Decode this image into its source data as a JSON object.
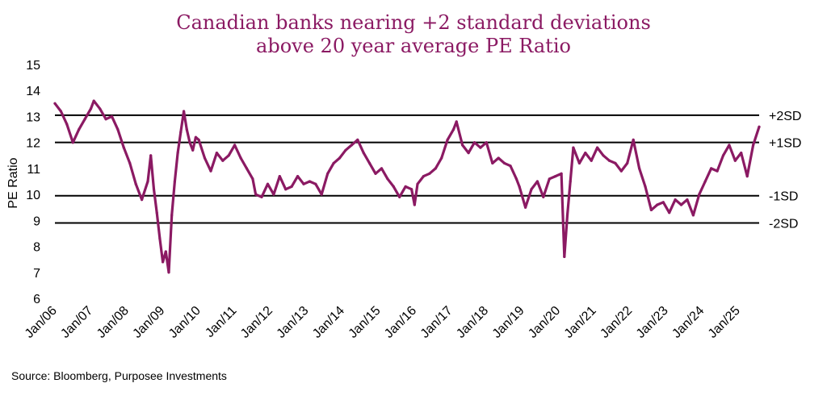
{
  "chart_data": {
    "type": "line",
    "title_lines": [
      "Canadian banks nearing +2 standard deviations",
      "above 20 year average PE Ratio"
    ],
    "ylabel": "PE Ratio",
    "xlabel": "",
    "ylim": [
      6,
      15
    ],
    "yticks": [
      6,
      7,
      8,
      9,
      10,
      11,
      12,
      13,
      14,
      15
    ],
    "xlim": [
      "2006-01",
      "2025-08"
    ],
    "xticks": [
      "Jan/06",
      "Jan/07",
      "Jan/08",
      "Jan/09",
      "Jan/10",
      "Jan/11",
      "Jan/12",
      "Jan/13",
      "Jan/14",
      "Jan/15",
      "Jan/16",
      "Jan/17",
      "Jan/18",
      "Jan/19",
      "Jan/20",
      "Jan/21",
      "Jan/22",
      "Jan/23",
      "Jan/24",
      "Jan/25"
    ],
    "grid": false,
    "line_color": "#8b1a63",
    "reference_lines": [
      {
        "label": "+2SD",
        "value": 13.05
      },
      {
        "label": "+1SD",
        "value": 12.0
      },
      {
        "label": "-1SD",
        "value": 9.95
      },
      {
        "label": "-2SD",
        "value": 8.9
      }
    ],
    "series": [
      {
        "x": [
          "2006-01",
          "2006-03",
          "2006-05",
          "2006-07",
          "2006-09",
          "2006-11",
          "2007-01",
          "2007-02",
          "2007-04",
          "2007-06",
          "2007-08",
          "2007-10",
          "2007-12",
          "2008-02",
          "2008-04",
          "2008-06",
          "2008-08",
          "2008-09",
          "2008-10",
          "2008-11",
          "2008-12",
          "2009-01",
          "2009-02",
          "2009-03",
          "2009-04",
          "2009-05",
          "2009-06",
          "2009-07",
          "2009-08",
          "2009-09",
          "2009-10",
          "2009-11",
          "2009-12",
          "2010-01",
          "2010-03",
          "2010-05",
          "2010-07",
          "2010-09",
          "2010-11",
          "2011-01",
          "2011-03",
          "2011-05",
          "2011-07",
          "2011-08",
          "2011-10",
          "2011-12",
          "2012-02",
          "2012-04",
          "2012-06",
          "2012-08",
          "2012-10",
          "2012-12",
          "2013-02",
          "2013-04",
          "2013-06",
          "2013-08",
          "2013-10",
          "2013-12",
          "2014-02",
          "2014-04",
          "2014-06",
          "2014-08",
          "2014-10",
          "2014-12",
          "2015-02",
          "2015-04",
          "2015-06",
          "2015-08",
          "2015-10",
          "2015-12",
          "2016-01",
          "2016-02",
          "2016-04",
          "2016-06",
          "2016-08",
          "2016-10",
          "2016-12",
          "2017-02",
          "2017-03",
          "2017-05",
          "2017-07",
          "2017-09",
          "2017-11",
          "2018-01",
          "2018-03",
          "2018-05",
          "2018-07",
          "2018-09",
          "2018-11",
          "2018-12",
          "2019-02",
          "2019-04",
          "2019-06",
          "2019-08",
          "2019-10",
          "2019-12",
          "2020-02",
          "2020-03",
          "2020-04",
          "2020-05",
          "2020-06",
          "2020-08",
          "2020-10",
          "2020-12",
          "2021-02",
          "2021-04",
          "2021-06",
          "2021-08",
          "2021-10",
          "2021-12",
          "2022-02",
          "2022-04",
          "2022-06",
          "2022-08",
          "2022-10",
          "2022-12",
          "2023-02",
          "2023-04",
          "2023-06",
          "2023-08",
          "2023-10",
          "2023-12",
          "2024-02",
          "2024-04",
          "2024-06",
          "2024-08",
          "2024-10",
          "2024-12",
          "2025-02",
          "2025-04",
          "2025-06",
          "2025-08"
        ],
        "y": [
          13.5,
          13.2,
          12.7,
          12.0,
          12.5,
          12.9,
          13.3,
          13.6,
          13.3,
          12.9,
          13.0,
          12.5,
          11.8,
          11.2,
          10.4,
          9.8,
          10.5,
          11.5,
          10.2,
          9.3,
          8.3,
          7.4,
          7.8,
          7.0,
          9.2,
          10.5,
          11.6,
          12.4,
          13.2,
          12.5,
          12.0,
          11.7,
          12.2,
          12.1,
          11.4,
          10.9,
          11.6,
          11.3,
          11.5,
          11.9,
          11.4,
          11.0,
          10.6,
          10.0,
          9.9,
          10.4,
          10.0,
          10.7,
          10.2,
          10.3,
          10.7,
          10.4,
          10.5,
          10.4,
          10.0,
          10.8,
          11.2,
          11.4,
          11.7,
          11.9,
          12.1,
          11.6,
          11.2,
          10.8,
          11.0,
          10.6,
          10.3,
          9.9,
          10.3,
          10.2,
          9.6,
          10.4,
          10.7,
          10.8,
          11.0,
          11.4,
          12.1,
          12.5,
          12.8,
          11.9,
          11.6,
          12.0,
          11.8,
          12.0,
          11.2,
          11.4,
          11.2,
          11.1,
          10.6,
          10.3,
          9.5,
          10.2,
          10.5,
          9.9,
          10.6,
          10.7,
          10.8,
          7.6,
          9.2,
          10.5,
          11.8,
          11.2,
          11.6,
          11.3,
          11.8,
          11.5,
          11.3,
          11.2,
          10.9,
          11.2,
          12.1,
          11.0,
          10.3,
          9.4,
          9.6,
          9.7,
          9.3,
          9.8,
          9.6,
          9.8,
          9.2,
          10.0,
          10.5,
          11.0,
          10.9,
          11.5,
          11.9,
          11.3,
          11.6,
          10.7,
          11.9,
          12.6
        ]
      }
    ]
  },
  "source": "Source: Bloomberg, Purposee Investments"
}
